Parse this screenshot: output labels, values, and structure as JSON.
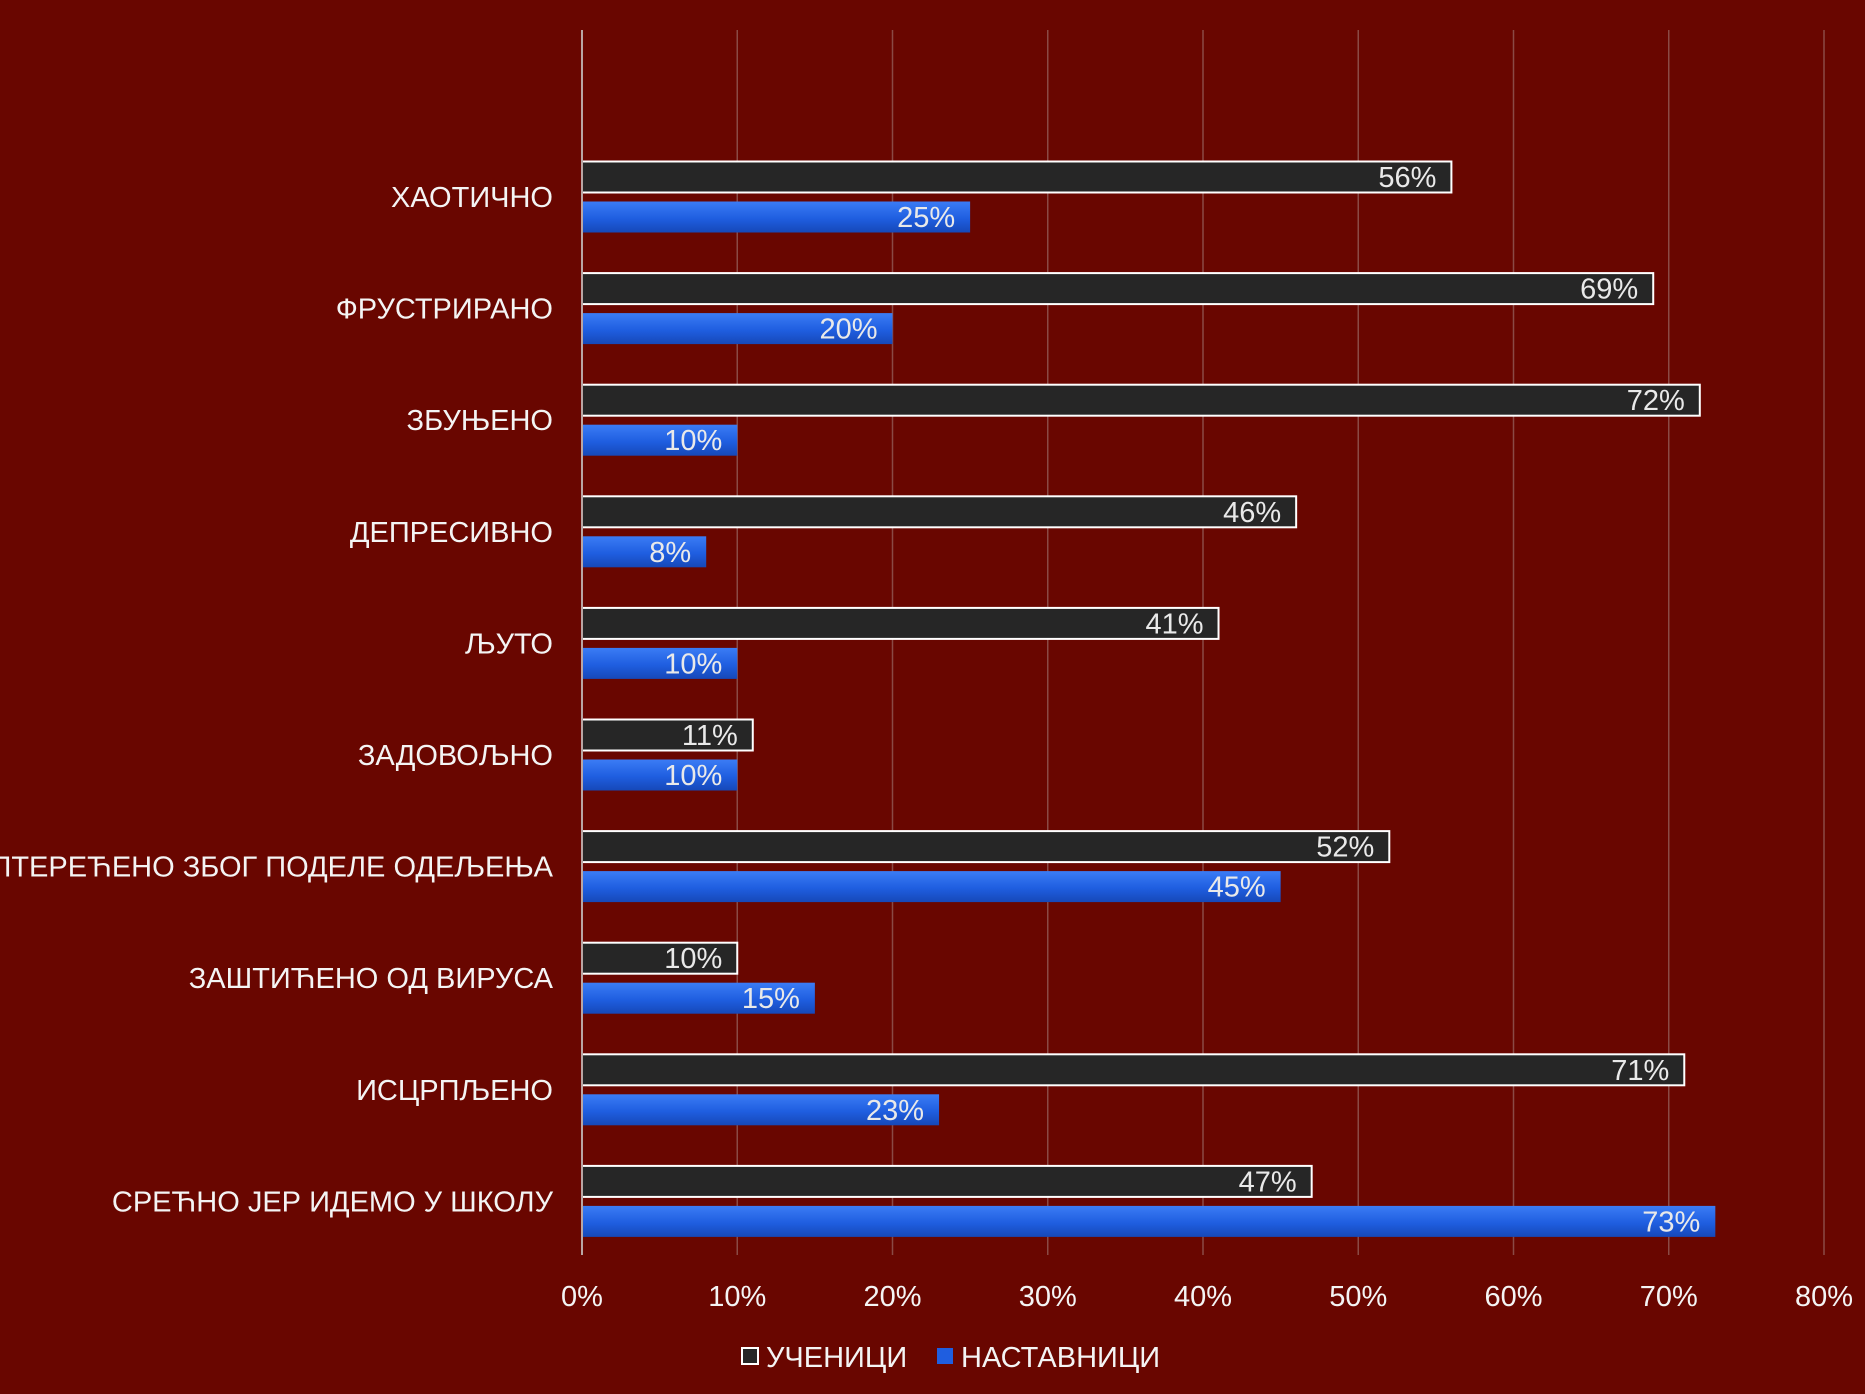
{
  "chart_data": {
    "type": "bar",
    "orientation": "horizontal",
    "categories": [
      "ХАОТИЧНО",
      "ФРУСТРИРАНО",
      "ЗБУЊЕНО",
      "ДЕПРЕСИВНО",
      "ЉУТО",
      "ЗАДОВОЉНО",
      "ОПТЕРЕЋЕНО ЗБОГ ПОДЕЛЕ ОДЕЉЕЊА",
      "ЗАШТИЋЕНО ОД ВИРУСА",
      "ИСЦРПЉЕНО",
      "СРЕЋНО ЈЕР ИДЕМО У ШКОЛУ"
    ],
    "series": [
      {
        "name": "УЧЕНИЦИ",
        "values": [
          56,
          69,
          72,
          46,
          41,
          11,
          52,
          10,
          71,
          47
        ],
        "labels": [
          "56%",
          "69%",
          "72%",
          "46%",
          "41%",
          "11%",
          "52%",
          "10%",
          "71%",
          "47%"
        ],
        "color": "#262626",
        "border": "#ffffff"
      },
      {
        "name": "НАСТАВНИЦИ",
        "values": [
          25,
          20,
          10,
          8,
          10,
          10,
          45,
          15,
          23,
          73
        ],
        "labels": [
          "25%",
          "20%",
          "10%",
          "8%",
          "10%",
          "10%",
          "45%",
          "15%",
          "23%",
          "73%"
        ],
        "color": "#1f5ee0",
        "border": "#1f5ee0"
      }
    ],
    "xlim": [
      0,
      80
    ],
    "x_ticks": [
      "0%",
      "10%",
      "20%",
      "30%",
      "40%",
      "50%",
      "60%",
      "70%",
      "80%"
    ],
    "x_tick_values": [
      0,
      10,
      20,
      30,
      40,
      50,
      60,
      70,
      80
    ],
    "grid": true,
    "legend_position": "bottom",
    "title": "",
    "xlabel": "",
    "ylabel": "",
    "background": "#690600",
    "text_color": "#f4f4f4",
    "grid_color": "#8a4a45"
  }
}
